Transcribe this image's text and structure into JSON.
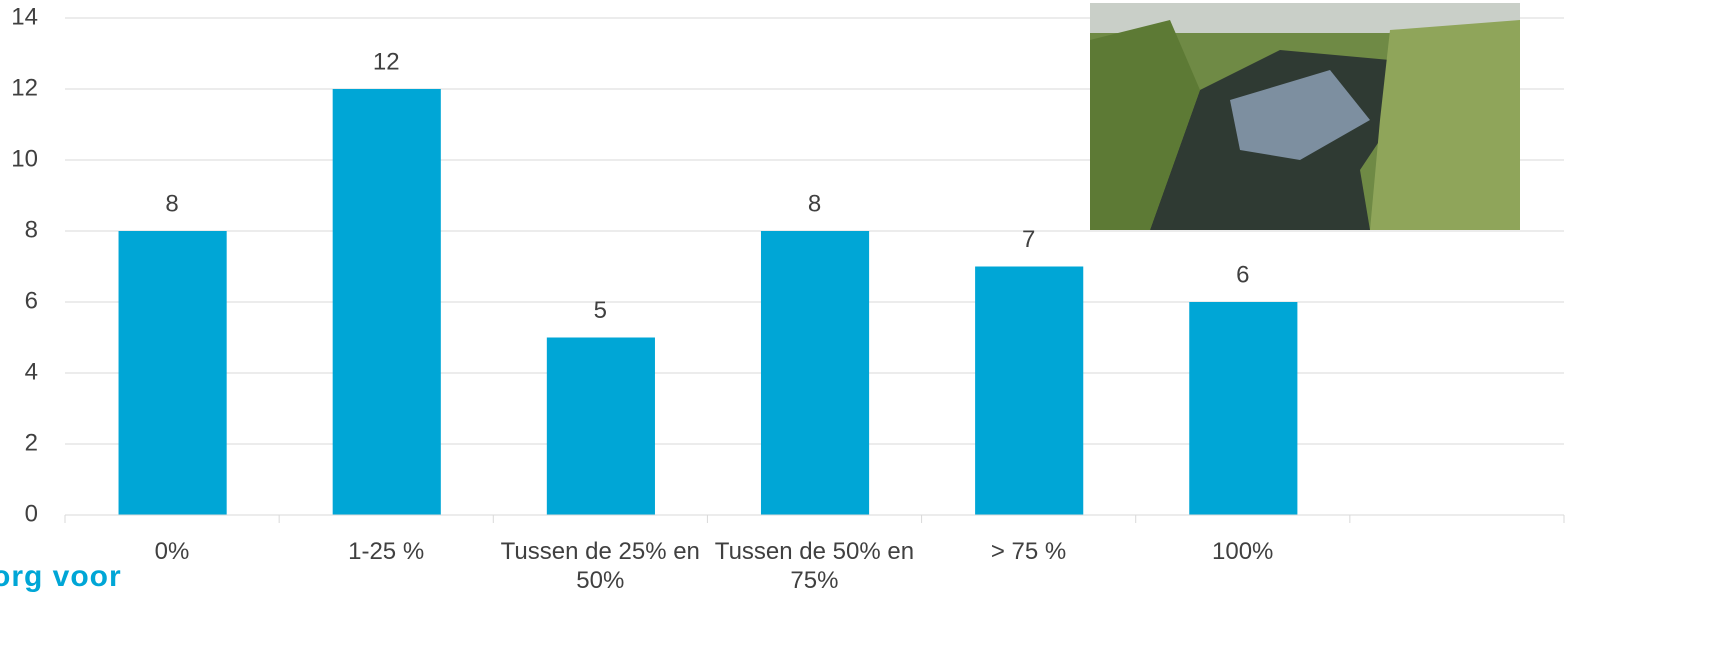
{
  "chart_data": {
    "type": "bar",
    "categories": [
      "0%",
      "1-25 %",
      "Tussen de 25% en 50%",
      "Tussen de 50% en 75%",
      "> 75 %",
      "100%",
      null
    ],
    "values": [
      8,
      12,
      5,
      8,
      7,
      6,
      null
    ],
    "color": "#00a6d6",
    "ylim": [
      0,
      14
    ],
    "yticks": [
      0,
      2,
      4,
      6,
      8,
      10,
      12,
      14
    ],
    "grid": true
  },
  "logo": "org voor"
}
